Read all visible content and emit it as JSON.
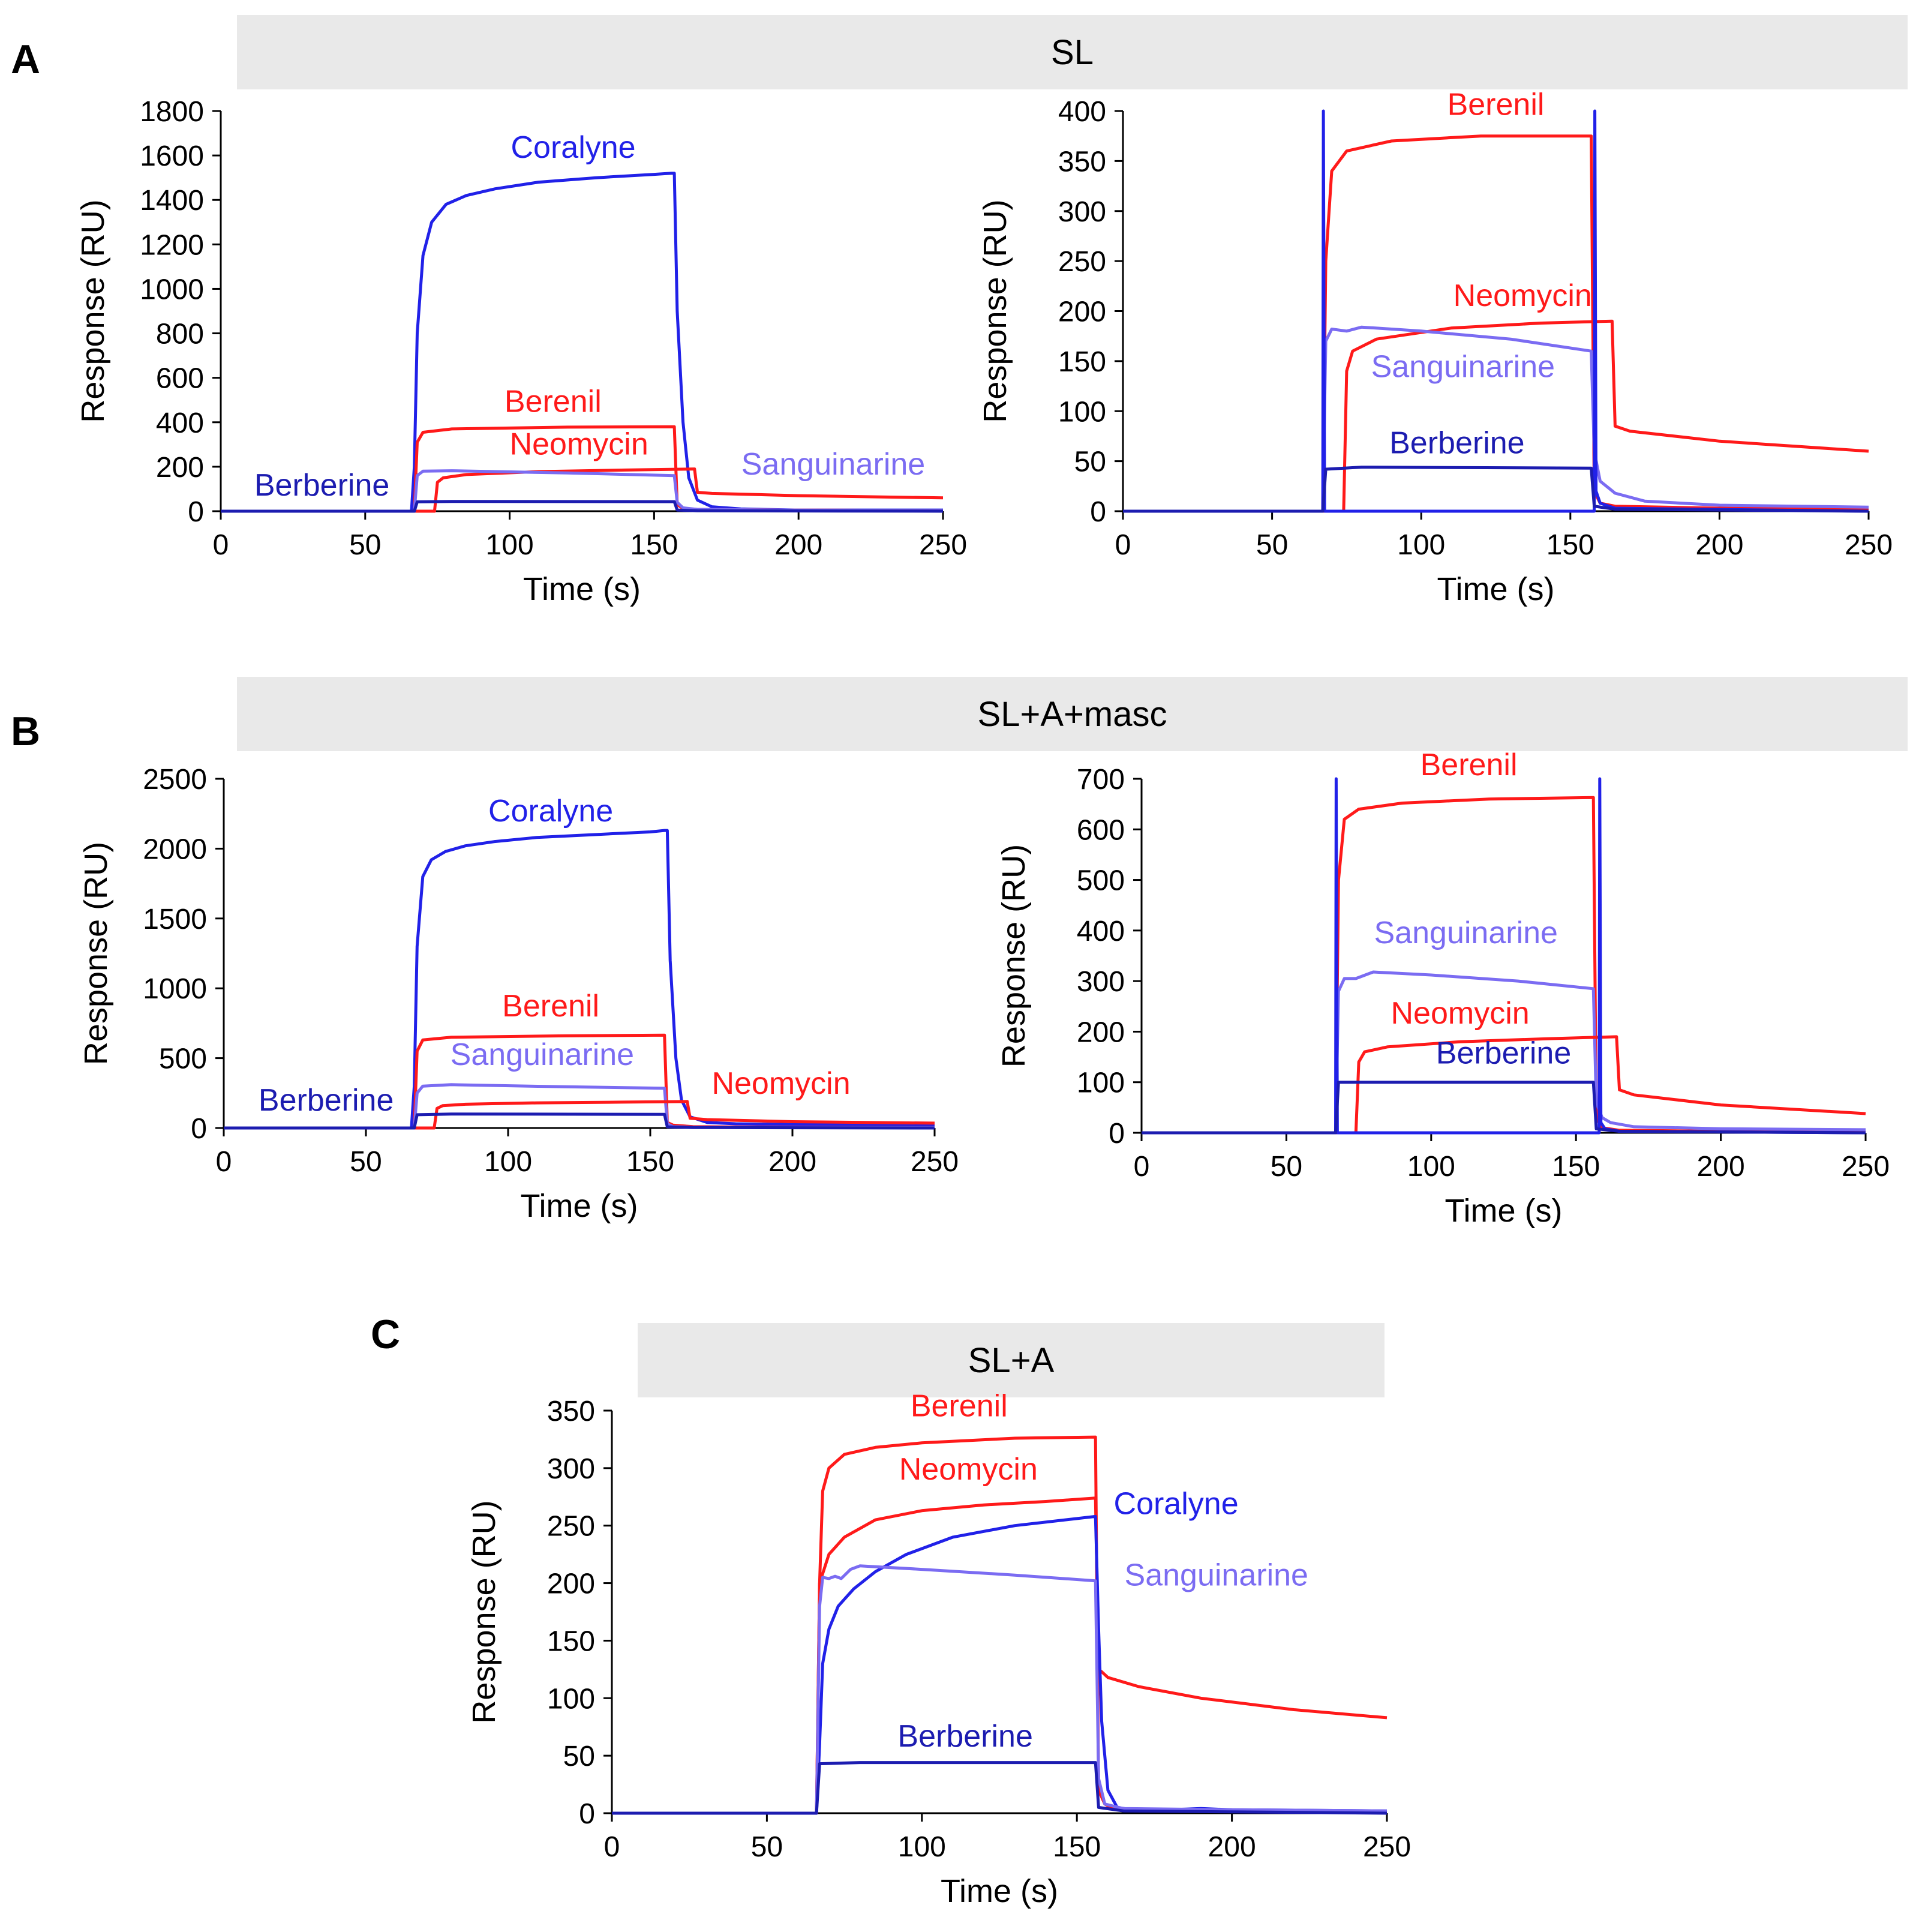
{
  "panels": {
    "A": {
      "letter": "A",
      "banner": "SL"
    },
    "B": {
      "letter": "B",
      "banner": "SL+A+masc"
    },
    "C": {
      "letter": "C",
      "banner": "SL+A"
    }
  },
  "colors": {
    "Coralyne": "#2121e8",
    "Berenil": "#ff1a1a",
    "Neomycin": "#ff1a1a",
    "Sanguinarine": "#7b6cf2",
    "Berberine": "#1c1cb0"
  },
  "chart_data": [
    {
      "type": "line",
      "panel": "A",
      "xlabel": "Time (s)",
      "ylabel": "Response (RU)",
      "xlim": [
        0,
        250
      ],
      "ylim": [
        0,
        1800
      ],
      "xticks": [
        0,
        50,
        100,
        150,
        200,
        250
      ],
      "yticks": [
        0,
        200,
        400,
        600,
        800,
        1000,
        1200,
        1400,
        1600,
        1800
      ],
      "series": [
        {
          "name": "Coralyne",
          "color": "#2121e8",
          "label_at": [
            122,
            1590
          ],
          "x": [
            0,
            66,
            67,
            68,
            70,
            73,
            78,
            85,
            95,
            110,
            130,
            150,
            156,
            157,
            158,
            160,
            162,
            165,
            170,
            180,
            200,
            250
          ],
          "y": [
            0,
            0,
            200,
            800,
            1150,
            1300,
            1380,
            1420,
            1450,
            1480,
            1500,
            1515,
            1520,
            1520,
            900,
            400,
            150,
            50,
            20,
            10,
            5,
            5
          ]
        },
        {
          "name": "Berenil",
          "color": "#ff1a1a",
          "label_at": [
            115,
            447
          ],
          "x": [
            0,
            67,
            68,
            70,
            80,
            120,
            157,
            158,
            160,
            165,
            200,
            250
          ],
          "y": [
            0,
            0,
            310,
            355,
            370,
            378,
            380,
            30,
            12,
            8,
            5,
            3
          ]
        },
        {
          "name": "Neomycin",
          "color": "#ff1a1a",
          "label_at": [
            124,
            255
          ],
          "x": [
            0,
            74,
            75,
            77,
            85,
            110,
            140,
            164,
            165,
            170,
            200,
            250
          ],
          "y": [
            0,
            0,
            130,
            150,
            165,
            178,
            185,
            190,
            85,
            80,
            70,
            60
          ]
        },
        {
          "name": "Sanguinarine",
          "color": "#7b6cf2",
          "label_at": [
            212,
            165
          ],
          "x": [
            0,
            67,
            68,
            70,
            80,
            120,
            157,
            158,
            160,
            165,
            200,
            250
          ],
          "y": [
            0,
            0,
            160,
            180,
            182,
            172,
            160,
            40,
            15,
            8,
            5,
            3
          ]
        },
        {
          "name": "Berberine",
          "color": "#1c1cb0",
          "label_at": [
            35,
            70
          ],
          "x": [
            0,
            67,
            68,
            80,
            157,
            158,
            165,
            250
          ],
          "y": [
            0,
            0,
            42,
            44,
            43,
            5,
            2,
            0
          ]
        }
      ]
    },
    {
      "type": "line",
      "panel": "A",
      "xlabel": "Time (s)",
      "ylabel": "Response (RU)",
      "xlim": [
        0,
        250
      ],
      "ylim": [
        0,
        400
      ],
      "xticks": [
        0,
        50,
        100,
        150,
        200,
        250
      ],
      "yticks": [
        0,
        50,
        100,
        150,
        200,
        250,
        300,
        350,
        400
      ],
      "series": [
        {
          "name": "Berenil",
          "color": "#ff1a1a",
          "label_at": [
            125,
            396
          ],
          "x": [
            0,
            67,
            68,
            70,
            75,
            90,
            120,
            157,
            158,
            160,
            165,
            200,
            250
          ],
          "y": [
            0,
            0,
            250,
            340,
            360,
            370,
            375,
            375,
            20,
            8,
            5,
            3,
            2
          ]
        },
        {
          "name": "Neomycin",
          "color": "#ff1a1a",
          "label_at": [
            134,
            205
          ],
          "x": [
            0,
            74,
            75,
            77,
            85,
            110,
            140,
            164,
            165,
            170,
            200,
            250
          ],
          "y": [
            0,
            0,
            140,
            160,
            172,
            183,
            188,
            190,
            85,
            80,
            70,
            60
          ]
        },
        {
          "name": "Sanguinarine",
          "color": "#7b6cf2",
          "label_at": [
            114,
            134
          ],
          "x": [
            0,
            67,
            68,
            70,
            75,
            80,
            100,
            130,
            157,
            158,
            160,
            165,
            175,
            200,
            250
          ],
          "y": [
            0,
            0,
            170,
            182,
            180,
            184,
            180,
            172,
            160,
            60,
            30,
            18,
            10,
            6,
            4
          ]
        },
        {
          "name": "Coralyne",
          "color": "#2121e8",
          "label_at": null,
          "x": [
            0,
            67,
            67.2,
            67.6,
            158,
            158.2,
            158.6,
            160,
            165,
            250
          ],
          "y": [
            0,
            0,
            400,
            0,
            0,
            400,
            20,
            8,
            3,
            0
          ]
        },
        {
          "name": "Berberine",
          "color": "#1c1cb0",
          "label_at": [
            112,
            58
          ],
          "x": [
            0,
            67,
            68,
            80,
            157,
            158,
            165,
            250
          ],
          "y": [
            0,
            0,
            42,
            44,
            43,
            5,
            2,
            0
          ]
        }
      ]
    },
    {
      "type": "line",
      "panel": "B",
      "xlabel": "Time (s)",
      "ylabel": "Response (RU)",
      "xlim": [
        0,
        250
      ],
      "ylim": [
        0,
        2500
      ],
      "xticks": [
        0,
        50,
        100,
        150,
        200,
        250
      ],
      "yticks": [
        0,
        500,
        1000,
        1500,
        2000,
        2500
      ],
      "series": [
        {
          "name": "Coralyne",
          "color": "#2121e8",
          "label_at": [
            115,
            2195
          ],
          "x": [
            0,
            66,
            67,
            68,
            70,
            73,
            78,
            85,
            95,
            110,
            130,
            150,
            155,
            156,
            157,
            159,
            161,
            164,
            170,
            180,
            200,
            250
          ],
          "y": [
            0,
            0,
            300,
            1300,
            1800,
            1920,
            1980,
            2020,
            2050,
            2080,
            2100,
            2120,
            2130,
            2130,
            1200,
            500,
            200,
            80,
            40,
            30,
            25,
            20
          ]
        },
        {
          "name": "Berenil",
          "color": "#ff1a1a",
          "label_at": [
            115,
            800
          ],
          "x": [
            0,
            67,
            68,
            70,
            80,
            120,
            155,
            156,
            158,
            165,
            200,
            250
          ],
          "y": [
            0,
            0,
            550,
            630,
            650,
            660,
            665,
            40,
            20,
            10,
            5,
            3
          ]
        },
        {
          "name": "Sanguinarine",
          "color": "#7b6cf2",
          "label_at": [
            112,
            450
          ],
          "x": [
            0,
            67,
            68,
            70,
            80,
            120,
            155,
            156,
            158,
            165,
            200,
            250
          ],
          "y": [
            0,
            0,
            250,
            300,
            310,
            295,
            285,
            30,
            10,
            5,
            3,
            2
          ]
        },
        {
          "name": "Neomycin",
          "color": "#ff1a1a",
          "label_at": [
            196,
            245
          ],
          "x": [
            0,
            74,
            75,
            77,
            85,
            110,
            140,
            163,
            164,
            170,
            200,
            250
          ],
          "y": [
            0,
            0,
            140,
            160,
            170,
            180,
            185,
            190,
            70,
            60,
            45,
            35
          ]
        },
        {
          "name": "Berberine",
          "color": "#1c1cb0",
          "label_at": [
            36,
            125
          ],
          "x": [
            0,
            67,
            68,
            80,
            155,
            156,
            165,
            250
          ],
          "y": [
            0,
            0,
            95,
            100,
            98,
            8,
            3,
            0
          ]
        }
      ]
    },
    {
      "type": "line",
      "panel": "B",
      "xlabel": "Time (s)",
      "ylabel": "Response (RU)",
      "xlim": [
        0,
        250
      ],
      "ylim": [
        0,
        700
      ],
      "xticks": [
        0,
        50,
        100,
        150,
        200,
        250
      ],
      "yticks": [
        0,
        100,
        200,
        300,
        400,
        500,
        600,
        700
      ],
      "series": [
        {
          "name": "Berenil",
          "color": "#ff1a1a",
          "label_at": [
            113,
            707
          ],
          "x": [
            0,
            67,
            68,
            70,
            75,
            90,
            120,
            156,
            157,
            159,
            165,
            200,
            250
          ],
          "y": [
            0,
            0,
            500,
            620,
            640,
            652,
            660,
            663,
            30,
            10,
            5,
            3,
            2
          ]
        },
        {
          "name": "Sanguinarine",
          "color": "#7b6cf2",
          "label_at": [
            112,
            375
          ],
          "x": [
            0,
            67,
            68,
            70,
            74,
            80,
            100,
            130,
            156,
            157,
            159,
            162,
            170,
            200,
            250
          ],
          "y": [
            0,
            0,
            280,
            305,
            305,
            318,
            312,
            300,
            285,
            60,
            30,
            20,
            12,
            8,
            6
          ]
        },
        {
          "name": "Neomycin",
          "color": "#ff1a1a",
          "label_at": [
            110,
            216
          ],
          "x": [
            0,
            74,
            75,
            77,
            85,
            110,
            140,
            164,
            165,
            170,
            200,
            250
          ],
          "y": [
            0,
            0,
            140,
            160,
            170,
            180,
            186,
            190,
            85,
            75,
            55,
            38
          ]
        },
        {
          "name": "Coralyne",
          "color": "#2121e8",
          "label_at": null,
          "x": [
            0,
            67,
            67.2,
            67.6,
            158,
            158.2,
            158.6,
            160,
            165,
            250
          ],
          "y": [
            0,
            0,
            700,
            0,
            0,
            700,
            20,
            8,
            3,
            0
          ]
        },
        {
          "name": "Berberine",
          "color": "#1c1cb0",
          "label_at": [
            125,
            137
          ],
          "x": [
            0,
            67,
            68,
            80,
            156,
            157,
            165,
            250
          ],
          "y": [
            0,
            0,
            100,
            100,
            100,
            8,
            3,
            0
          ]
        }
      ]
    },
    {
      "type": "line",
      "panel": "C",
      "xlabel": "Time (s)",
      "ylabel": "Response (RU)",
      "xlim": [
        0,
        250
      ],
      "ylim": [
        0,
        350
      ],
      "xticks": [
        0,
        50,
        100,
        150,
        200,
        250
      ],
      "yticks": [
        0,
        50,
        100,
        150,
        200,
        250,
        300,
        350
      ],
      "series": [
        {
          "name": "Berenil",
          "color": "#ff1a1a",
          "label_at": [
            112,
            345
          ],
          "x": [
            0,
            66,
            67,
            68,
            70,
            75,
            85,
            100,
            130,
            156,
            157,
            159,
            161,
            165,
            200,
            250
          ],
          "y": [
            0,
            0,
            200,
            280,
            300,
            312,
            318,
            322,
            326,
            327,
            20,
            8,
            5,
            3,
            2,
            1
          ]
        },
        {
          "name": "Neomycin",
          "color": "#ff1a1a",
          "label_at": [
            115,
            290
          ],
          "x": [
            0,
            66,
            67,
            70,
            75,
            85,
            100,
            120,
            140,
            156,
            157,
            158,
            160,
            170,
            190,
            220,
            250
          ],
          "y": [
            0,
            0,
            200,
            225,
            240,
            255,
            263,
            268,
            271,
            274,
            125,
            123,
            118,
            110,
            100,
            90,
            83
          ]
        },
        {
          "name": "Coralyne",
          "color": "#2121e8",
          "label_at": [
            182,
            260
          ],
          "x": [
            0,
            66,
            67,
            68,
            70,
            73,
            78,
            85,
            95,
            110,
            130,
            156,
            157,
            158,
            160,
            163,
            170,
            190,
            200,
            250
          ],
          "y": [
            0,
            0,
            60,
            130,
            160,
            180,
            195,
            210,
            225,
            240,
            250,
            258,
            160,
            80,
            20,
            5,
            2,
            4,
            3,
            2
          ]
        },
        {
          "name": "Sanguinarine",
          "color": "#7b6cf2",
          "label_at": [
            195,
            198
          ],
          "x": [
            0,
            66,
            67,
            68,
            70,
            72,
            74,
            77,
            80,
            100,
            130,
            156,
            157,
            159,
            165,
            200,
            250
          ],
          "y": [
            0,
            0,
            180,
            205,
            204,
            206,
            204,
            212,
            215,
            212,
            207,
            202,
            30,
            8,
            4,
            3,
            2
          ]
        },
        {
          "name": "Berberine",
          "color": "#1c1cb0",
          "label_at": [
            114,
            58
          ],
          "x": [
            0,
            66,
            67,
            80,
            156,
            157,
            165,
            250
          ],
          "y": [
            0,
            0,
            43,
            44,
            44,
            5,
            2,
            0
          ]
        }
      ]
    }
  ]
}
